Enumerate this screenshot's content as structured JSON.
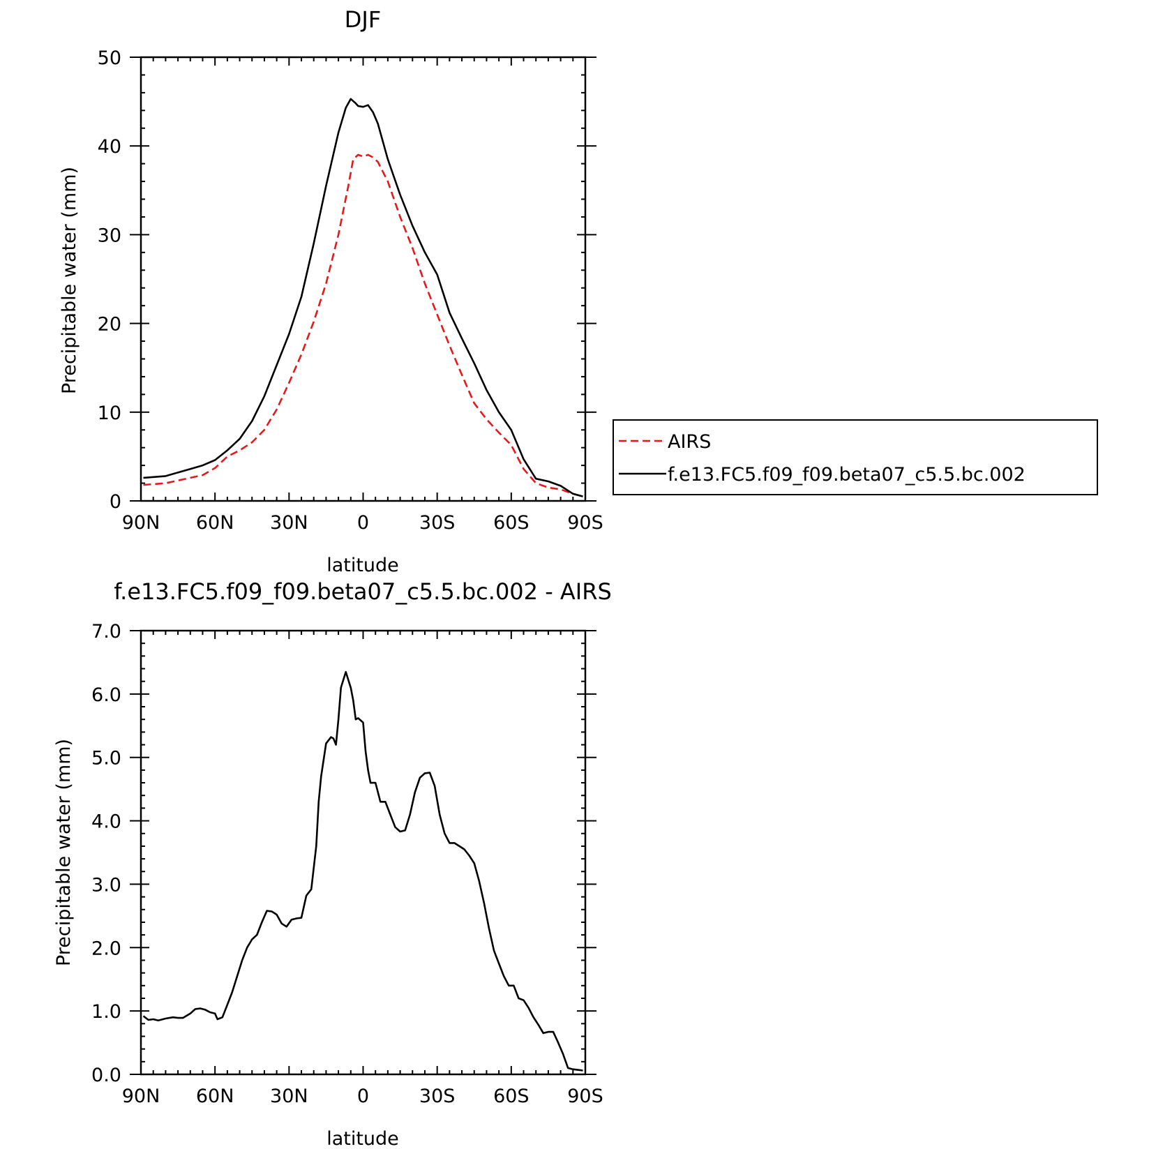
{
  "chart_data": [
    {
      "type": "line",
      "title": "DJF",
      "xlabel": "latitude",
      "ylabel": "Precipitable water (mm)",
      "xlim": [
        90,
        -90
      ],
      "ylim": [
        0,
        50
      ],
      "xticks": [
        {
          "value": 90,
          "label": "90N"
        },
        {
          "value": 60,
          "label": "60N"
        },
        {
          "value": 30,
          "label": "30N"
        },
        {
          "value": 0,
          "label": "0"
        },
        {
          "value": -30,
          "label": "30S"
        },
        {
          "value": -60,
          "label": "60S"
        },
        {
          "value": -90,
          "label": "90S"
        }
      ],
      "yticks": [
        {
          "value": 0,
          "label": "0"
        },
        {
          "value": 10,
          "label": "10"
        },
        {
          "value": 20,
          "label": "20"
        },
        {
          "value": 30,
          "label": "30"
        },
        {
          "value": 40,
          "label": "40"
        },
        {
          "value": 50,
          "label": "50"
        }
      ],
      "legend": {
        "placement": "right"
      },
      "series": [
        {
          "name": "AIRS",
          "color": "#e31a1c",
          "dash": "dashed",
          "x": [
            89,
            80,
            70,
            65,
            60,
            55,
            50,
            45,
            40,
            35,
            30,
            25,
            20,
            15,
            10,
            6,
            4,
            2,
            0,
            -2,
            -4,
            -6,
            -10,
            -15,
            -20,
            -25,
            -30,
            -35,
            -40,
            -45,
            -50,
            -55,
            -60,
            -65,
            -70,
            -75,
            -80,
            -85,
            -89
          ],
          "values": [
            1.8,
            2.0,
            2.6,
            2.9,
            3.7,
            5.0,
            5.7,
            6.6,
            8.0,
            10.3,
            13.3,
            16.5,
            20.2,
            24.5,
            30.0,
            35.5,
            38.5,
            39.0,
            38.8,
            39.0,
            38.7,
            38.2,
            36.0,
            32.0,
            28.5,
            24.5,
            21.0,
            17.5,
            14.2,
            11.0,
            9.2,
            7.7,
            6.3,
            3.6,
            2.0,
            1.5,
            1.3,
            0.8,
            0.5
          ]
        },
        {
          "name": "f.e13.FC5.f09_f09.beta07_c5.5.bc.002",
          "color": "#000000",
          "dash": "solid",
          "x": [
            89,
            80,
            70,
            65,
            60,
            55,
            50,
            45,
            40,
            35,
            30,
            25,
            20,
            15,
            10,
            7,
            5,
            3,
            2,
            0,
            -2,
            -4,
            -6,
            -10,
            -15,
            -20,
            -25,
            -30,
            -35,
            -40,
            -45,
            -50,
            -55,
            -60,
            -65,
            -70,
            -75,
            -80,
            -85,
            -89
          ],
          "values": [
            2.6,
            2.8,
            3.6,
            4.0,
            4.6,
            5.7,
            7.0,
            9.0,
            11.8,
            15.3,
            18.8,
            23.0,
            29.0,
            35.5,
            41.5,
            44.3,
            45.3,
            44.8,
            44.5,
            44.4,
            44.6,
            43.8,
            42.5,
            38.5,
            34.5,
            31.0,
            28.0,
            25.5,
            21.2,
            18.3,
            15.5,
            12.5,
            10.0,
            8.0,
            4.7,
            2.5,
            2.2,
            1.7,
            0.8,
            0.5
          ]
        }
      ]
    },
    {
      "type": "line",
      "title": "f.e13.FC5.f09_f09.beta07_c5.5.bc.002 - AIRS",
      "xlabel": "latitude",
      "ylabel": "Precipitable water (mm)",
      "xlim": [
        90,
        -90
      ],
      "ylim": [
        0,
        7
      ],
      "xticks": [
        {
          "value": 90,
          "label": "90N"
        },
        {
          "value": 60,
          "label": "60N"
        },
        {
          "value": 30,
          "label": "30N"
        },
        {
          "value": 0,
          "label": "0"
        },
        {
          "value": -30,
          "label": "30S"
        },
        {
          "value": -60,
          "label": "60S"
        },
        {
          "value": -90,
          "label": "90S"
        }
      ],
      "yticks": [
        {
          "value": 0,
          "label": "0.0"
        },
        {
          "value": 1,
          "label": "1.0"
        },
        {
          "value": 2,
          "label": "2.0"
        },
        {
          "value": 3,
          "label": "3.0"
        },
        {
          "value": 4,
          "label": "4.0"
        },
        {
          "value": 5,
          "label": "5.0"
        },
        {
          "value": 6,
          "label": "6.0"
        },
        {
          "value": 7,
          "label": "7.0"
        }
      ],
      "series": [
        {
          "color": "#000000",
          "dash": "solid",
          "x": [
            89,
            87,
            85,
            83,
            80,
            77,
            75,
            73,
            70,
            68,
            66,
            64,
            62,
            60,
            59,
            57,
            55,
            53,
            51,
            49,
            47,
            45,
            43,
            41,
            39,
            37,
            35,
            33,
            31,
            29,
            27,
            25,
            23,
            21,
            19,
            18,
            17,
            15,
            13,
            12,
            11,
            10,
            9,
            7,
            5,
            4,
            3,
            2,
            0,
            -1,
            -2,
            -3,
            -5,
            -7,
            -9,
            -11,
            -13,
            -15,
            -17,
            -19,
            -21,
            -23,
            -25,
            -27,
            -29,
            -31,
            -33,
            -35,
            -37,
            -39,
            -41,
            -43,
            -45,
            -47,
            -49,
            -51,
            -53,
            -55,
            -57,
            -59,
            -61,
            -63,
            -65,
            -67,
            -69,
            -71,
            -73,
            -75,
            -77,
            -79,
            -81,
            -83,
            -85,
            -87,
            -89
          ],
          "values": [
            0.92,
            0.86,
            0.87,
            0.85,
            0.88,
            0.9,
            0.89,
            0.89,
            0.96,
            1.03,
            1.04,
            1.02,
            0.98,
            0.96,
            0.87,
            0.9,
            1.1,
            1.3,
            1.55,
            1.8,
            2.0,
            2.13,
            2.2,
            2.4,
            2.58,
            2.57,
            2.52,
            2.38,
            2.33,
            2.44,
            2.46,
            2.47,
            2.82,
            2.92,
            3.6,
            4.3,
            4.7,
            5.22,
            5.32,
            5.3,
            5.2,
            5.6,
            6.1,
            6.35,
            6.1,
            5.9,
            5.6,
            5.62,
            5.55,
            5.1,
            4.8,
            4.6,
            4.6,
            4.3,
            4.3,
            4.1,
            3.9,
            3.83,
            3.85,
            4.1,
            4.45,
            4.68,
            4.75,
            4.76,
            4.55,
            4.1,
            3.8,
            3.65,
            3.65,
            3.6,
            3.55,
            3.45,
            3.33,
            3.05,
            2.7,
            2.3,
            1.95,
            1.75,
            1.55,
            1.4,
            1.4,
            1.2,
            1.17,
            1.05,
            0.9,
            0.78,
            0.65,
            0.67,
            0.67,
            0.5,
            0.32,
            0.1,
            0.08,
            0.07,
            0.06
          ]
        }
      ]
    }
  ]
}
